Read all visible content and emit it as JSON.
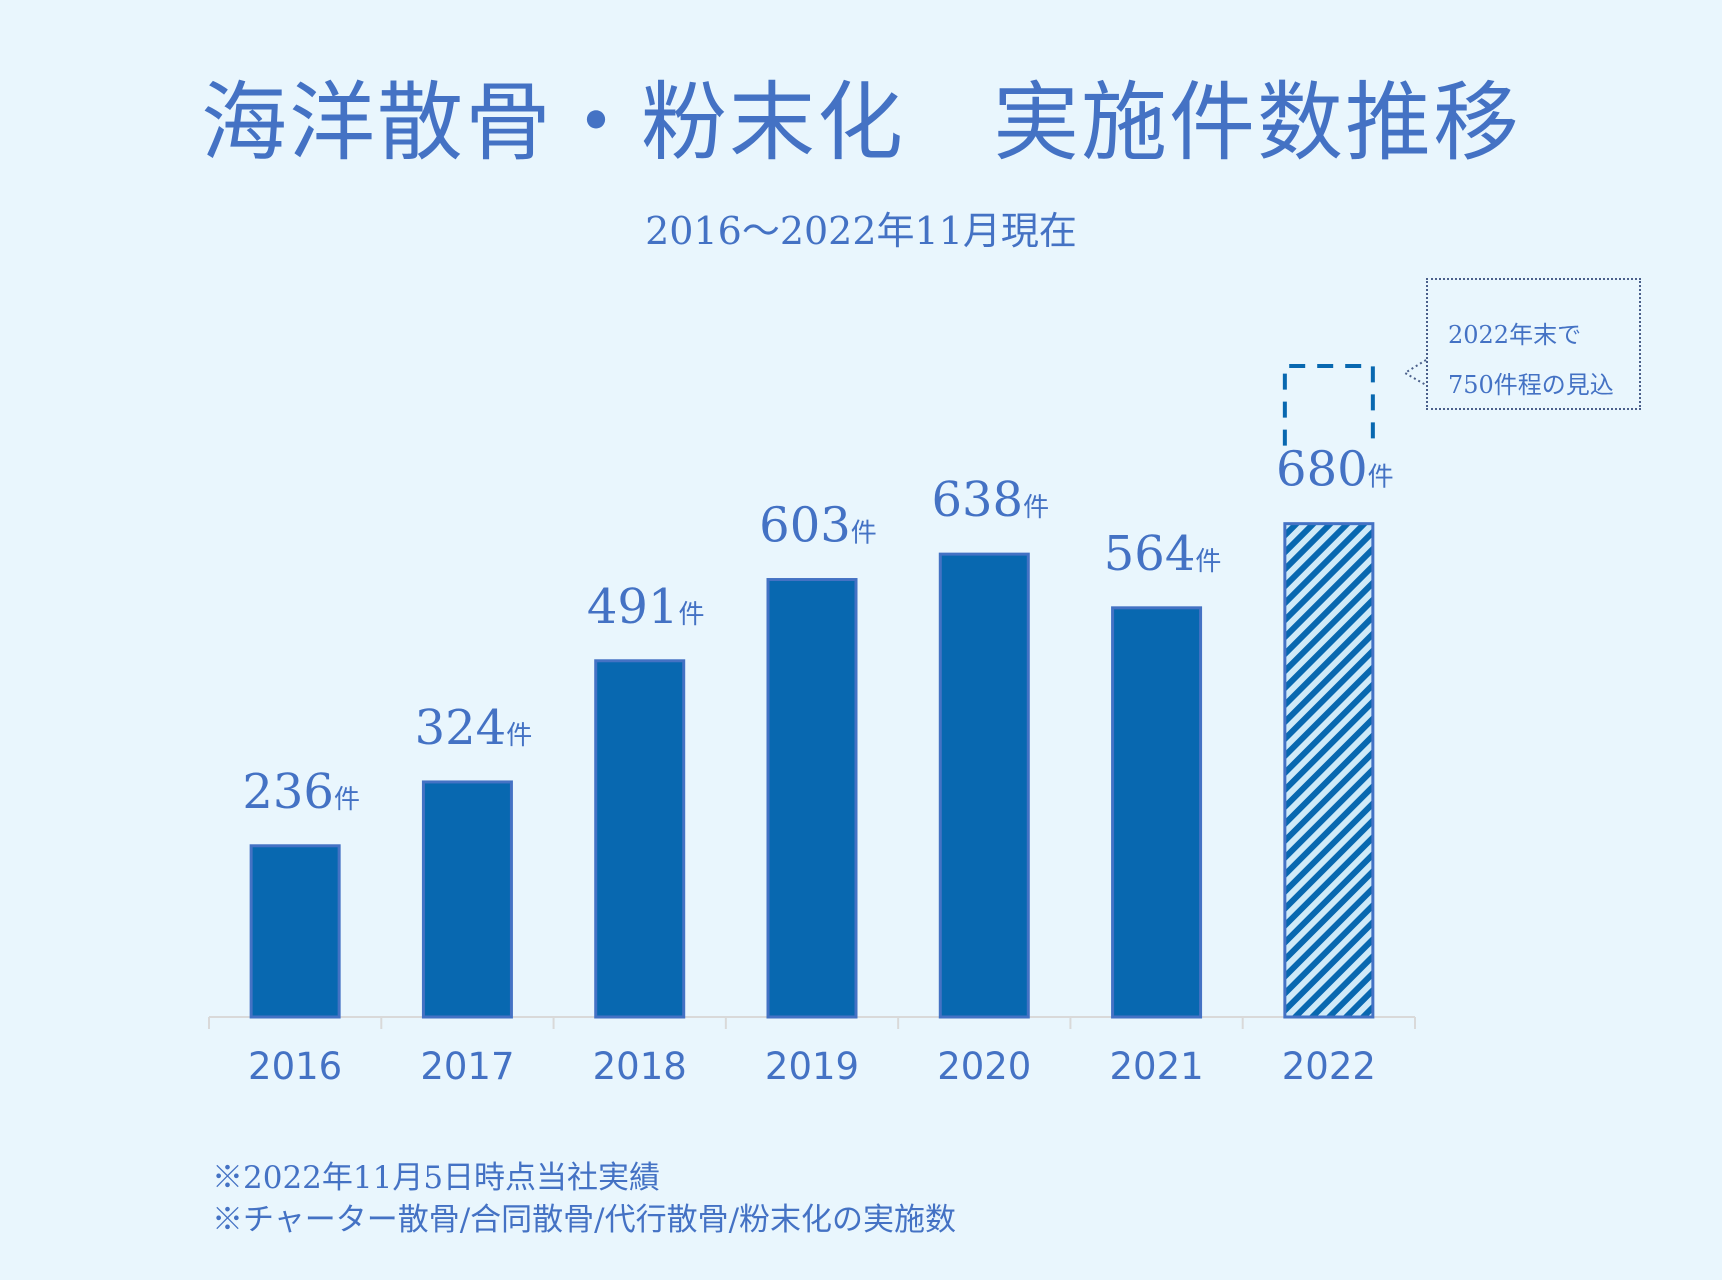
{
  "chart_data": {
    "type": "bar",
    "title": "海洋散骨・粉末化　実施件数推移",
    "subtitle": "2016〜2022年11月現在",
    "categories": [
      "2016",
      "2017",
      "2018",
      "2019",
      "2020",
      "2021",
      "2022"
    ],
    "values": [
      236,
      324,
      491,
      603,
      638,
      564,
      680
    ],
    "value_suffix": "件",
    "ylim": [
      0,
      800
    ],
    "grid": false,
    "projection": {
      "category": "2022",
      "value": 750,
      "style": "dashed outline"
    },
    "highlight": {
      "category": "2022",
      "style": "hatched"
    },
    "annotation": [
      "2022年末で",
      "750件程の見込"
    ],
    "footnotes": [
      "※2022年11月5日時点当社実績",
      "※チャーター散骨/合同散骨/代行散骨/粉末化の実施数"
    ],
    "colors": {
      "bar": "#0868b0",
      "bar_border": "#4472c4",
      "text": "#4472c4",
      "background": "#e9f6fd",
      "axis": "#d9d9d9"
    }
  }
}
